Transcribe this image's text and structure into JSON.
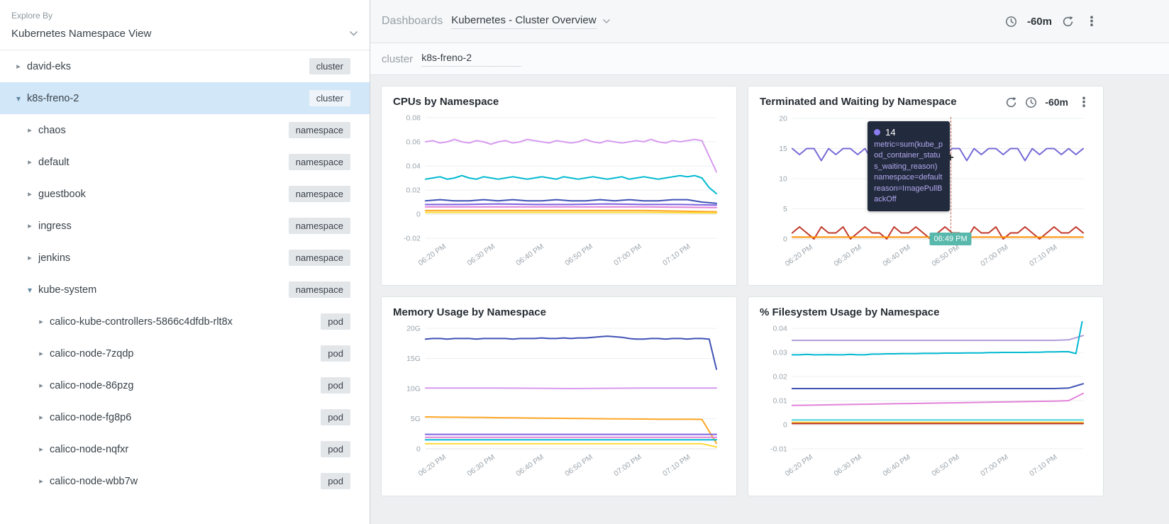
{
  "icons": {
    "kebab_glyph": "⋮",
    "caret_closed_glyph": "▸",
    "caret_open_glyph": "▾",
    "cross_glyph": "+"
  },
  "colors": {
    "selected_row_bg": "#d2e7f8",
    "badge_bg": "#e3e6e9",
    "tooltip_bg": "#222b3d",
    "tooltip_text": "#b3a8f0",
    "time_badge_bg": "#58b8ac",
    "crosshair": "#c2604f"
  },
  "sidebar": {
    "explore_by": "Explore By",
    "view_selector": "Kubernetes Namespace View",
    "tree": [
      {
        "label": "david-eks",
        "badge": "cluster",
        "level": 0,
        "expanded": false,
        "selected": false
      },
      {
        "label": "k8s-freno-2",
        "badge": "cluster",
        "level": 0,
        "expanded": true,
        "selected": true
      },
      {
        "label": "chaos",
        "badge": "namespace",
        "level": 1,
        "expanded": false,
        "selected": false
      },
      {
        "label": "default",
        "badge": "namespace",
        "level": 1,
        "expanded": false,
        "selected": false
      },
      {
        "label": "guestbook",
        "badge": "namespace",
        "level": 1,
        "expanded": false,
        "selected": false
      },
      {
        "label": "ingress",
        "badge": "namespace",
        "level": 1,
        "expanded": false,
        "selected": false
      },
      {
        "label": "jenkins",
        "badge": "namespace",
        "level": 1,
        "expanded": false,
        "selected": false
      },
      {
        "label": "kube-system",
        "badge": "namespace",
        "level": 1,
        "expanded": true,
        "selected": false
      },
      {
        "label": "calico-kube-controllers-5866c4dfdb-rlt8x",
        "badge": "pod",
        "level": 2,
        "expanded": false,
        "selected": false
      },
      {
        "label": "calico-node-7zqdp",
        "badge": "pod",
        "level": 2,
        "expanded": false,
        "selected": false
      },
      {
        "label": "calico-node-86pzg",
        "badge": "pod",
        "level": 2,
        "expanded": false,
        "selected": false
      },
      {
        "label": "calico-node-fg8p6",
        "badge": "pod",
        "level": 2,
        "expanded": false,
        "selected": false
      },
      {
        "label": "calico-node-nqfxr",
        "badge": "pod",
        "level": 2,
        "expanded": false,
        "selected": false
      },
      {
        "label": "calico-node-wbb7w",
        "badge": "pod",
        "level": 2,
        "expanded": false,
        "selected": false
      }
    ]
  },
  "topbar": {
    "dashboards_label": "Dashboards",
    "dashboard_name": "Kubernetes - Cluster Overview",
    "time_range": "-60m"
  },
  "scope": {
    "key": "cluster",
    "value": "k8s-freno-2"
  },
  "panel2": {
    "time_range": "-60m"
  },
  "tooltip": {
    "value": "14",
    "lines": [
      "metric=sum(kube_pod_container_status_waiting_reason)",
      "namespace=default",
      "reason=ImagePullBackOff"
    ],
    "time_badge": "06:49 PM",
    "dot_color": "#8a7ef0"
  },
  "chart_data": [
    {
      "type": "line",
      "title": "CPUs by Namespace",
      "xlabel": "",
      "ylabel": "",
      "ylim": [
        -0.02,
        0.08
      ],
      "grid": "horizontal",
      "legend": "none",
      "yticks": [
        {
          "v": -0.02,
          "label": "-0.02"
        },
        {
          "v": 0,
          "label": "0"
        },
        {
          "v": 0.02,
          "label": "0.02"
        },
        {
          "v": 0.04,
          "label": "0.04"
        },
        {
          "v": 0.06,
          "label": "0.06"
        },
        {
          "v": 0.08,
          "label": "0.08"
        }
      ],
      "xticks": [
        "06:20 PM",
        "06:30 PM",
        "06:40 PM",
        "06:50 PM",
        "07:00 PM",
        "07:10 PM"
      ],
      "series": [
        {
          "color": "#d79af0",
          "values": [
            0.06,
            0.061,
            0.059,
            0.06,
            0.062,
            0.06,
            0.059,
            0.061,
            0.06,
            0.058,
            0.06,
            0.061,
            0.059,
            0.06,
            0.062,
            0.061,
            0.06,
            0.059,
            0.061,
            0.06,
            0.059,
            0.06,
            0.062,
            0.06,
            0.059,
            0.061,
            0.06,
            0.059,
            0.06,
            0.061,
            0.06,
            0.062,
            0.06,
            0.059,
            0.061,
            0.06,
            0.061,
            0.062,
            0.061,
            0.048,
            0.035
          ]
        },
        {
          "color": "#00b9d1",
          "values": [
            0.029,
            0.03,
            0.031,
            0.029,
            0.03,
            0.032,
            0.03,
            0.029,
            0.031,
            0.03,
            0.029,
            0.03,
            0.031,
            0.03,
            0.029,
            0.03,
            0.031,
            0.03,
            0.029,
            0.031,
            0.03,
            0.029,
            0.03,
            0.031,
            0.03,
            0.029,
            0.03,
            0.031,
            0.029,
            0.03,
            0.031,
            0.03,
            0.029,
            0.03,
            0.031,
            0.032,
            0.031,
            0.032,
            0.03,
            0.022,
            0.017
          ]
        },
        {
          "color": "#3f51b5",
          "values": [
            0.011,
            0.012,
            0.011,
            0.011,
            0.012,
            0.011,
            0.012,
            0.011,
            0.011,
            0.012,
            0.011,
            0.011,
            0.012,
            0.011,
            0.012,
            0.011,
            0.011,
            0.012,
            0.012,
            0.01,
            0.009
          ]
        },
        {
          "color": "#7c62e0",
          "values": [
            0.008,
            0.008,
            0.0085,
            0.008,
            0.008,
            0.0085,
            0.008,
            0.008,
            0.0075
          ]
        },
        {
          "color": "#e283d8",
          "values": [
            0.006,
            0.006,
            0.006,
            0.006,
            0.0055
          ]
        },
        {
          "color": "#ffa726",
          "values": [
            0.003,
            0.003,
            0.003,
            0.003,
            0.002
          ]
        },
        {
          "color": "#fdd835",
          "values": [
            0.0015,
            0.0015,
            0.0015,
            0.0015,
            0.001
          ]
        }
      ]
    },
    {
      "type": "line",
      "title": "Terminated and Waiting by Namespace",
      "xlabel": "",
      "ylabel": "",
      "ylim": [
        0,
        20
      ],
      "grid": "horizontal",
      "legend": "none",
      "yticks": [
        {
          "v": 0,
          "label": "0"
        },
        {
          "v": 5,
          "label": "5"
        },
        {
          "v": 10,
          "label": "10"
        },
        {
          "v": 15,
          "label": "15"
        },
        {
          "v": 20,
          "label": "20"
        }
      ],
      "xticks": [
        "06:20 PM",
        "06:30 PM",
        "06:40 PM",
        "06:50 PM",
        "07:00 PM",
        "07:10 PM"
      ],
      "series": [
        {
          "color": "#7569d6",
          "values": [
            15,
            14,
            15,
            15,
            13,
            15,
            14,
            15,
            15,
            14,
            15,
            13,
            15,
            15,
            14,
            15,
            15,
            14,
            13,
            15,
            15,
            14,
            15,
            15,
            13,
            15,
            14,
            15,
            15,
            14,
            15,
            15,
            13,
            15,
            14,
            15,
            15,
            14,
            15,
            14,
            15
          ]
        },
        {
          "color": "#c0392b",
          "values": [
            1,
            2,
            1,
            0,
            2,
            1,
            1,
            2,
            0,
            1,
            2,
            1,
            1,
            0,
            2,
            1,
            1,
            2,
            1,
            0,
            1,
            2,
            1,
            1,
            0,
            2,
            1,
            1,
            2,
            0,
            1,
            1,
            2,
            1,
            0,
            1,
            2,
            1,
            1,
            2,
            1
          ]
        },
        {
          "color": "#ff8f00",
          "values": [
            0.3,
            0.3
          ]
        }
      ]
    },
    {
      "type": "line",
      "title": "Memory Usage by Namespace",
      "xlabel": "",
      "ylabel": "",
      "ylim": [
        0,
        20
      ],
      "unit": "G",
      "grid": "horizontal",
      "legend": "none",
      "yticks": [
        {
          "v": 0,
          "label": "0"
        },
        {
          "v": 5,
          "label": "5G"
        },
        {
          "v": 10,
          "label": "10G"
        },
        {
          "v": 15,
          "label": "15G"
        },
        {
          "v": 20,
          "label": "20G"
        }
      ],
      "xticks": [
        "06:20 PM",
        "06:30 PM",
        "06:40 PM",
        "06:50 PM",
        "07:00 PM",
        "07:10 PM"
      ],
      "series": [
        {
          "color": "#3f51b5",
          "values": [
            18.2,
            18.3,
            18.3,
            18.2,
            18.3,
            18.3,
            18.3,
            18.2,
            18.3,
            18.3,
            18.3,
            18.3,
            18.2,
            18.3,
            18.3,
            18.3,
            18.4,
            18.3,
            18.3,
            18.4,
            18.3,
            18.4,
            18.4,
            18.5,
            18.6,
            18.7,
            18.6,
            18.5,
            18.3,
            18.2,
            18.2,
            18.3,
            18.3,
            18.2,
            18.3,
            18.3,
            18.2,
            18.3,
            18.3,
            18.2,
            13.2
          ]
        },
        {
          "color": "#d79af0",
          "values": [
            10.1,
            10.1,
            10.0,
            10.1,
            10.1
          ]
        },
        {
          "color": "#ffa726",
          "values": [
            5.3,
            5.27,
            5.25,
            5.22,
            5.2,
            5.17,
            5.15,
            5.12,
            5.1,
            5.07,
            5.05,
            5.02,
            5.0,
            4.98,
            4.96,
            4.94,
            4.92,
            4.9,
            4.9,
            4.88,
            0.9
          ]
        },
        {
          "color": "#7c62e0",
          "values": [
            2.4,
            2.4
          ]
        },
        {
          "color": "#e283d8",
          "values": [
            1.9,
            1.9
          ]
        },
        {
          "color": "#00b9d1",
          "values": [
            1.5,
            1.5
          ]
        },
        {
          "color": "#fdd835",
          "values": [
            0.85,
            0.85,
            0.85,
            0.85,
            0.85,
            0.85,
            0.85,
            0.85,
            0.85,
            0.85,
            0.85,
            0.85,
            0.85,
            0.85,
            0.85,
            0.85,
            0.85,
            0.85,
            0.85,
            0.85,
            0.3
          ]
        }
      ]
    },
    {
      "type": "line",
      "title": "% Filesystem Usage by Namespace",
      "xlabel": "",
      "ylabel": "",
      "ylim": [
        -0.01,
        0.04
      ],
      "grid": "horizontal",
      "legend": "none",
      "yticks": [
        {
          "v": -0.01,
          "label": "-0.01"
        },
        {
          "v": 0,
          "label": "0"
        },
        {
          "v": 0.01,
          "label": "0.01"
        },
        {
          "v": 0.02,
          "label": "0.02"
        },
        {
          "v": 0.03,
          "label": "0.03"
        },
        {
          "v": 0.04,
          "label": "0.04"
        }
      ],
      "xticks": [
        "06:20 PM",
        "06:30 PM",
        "06:40 PM",
        "06:50 PM",
        "07:00 PM",
        "07:10 PM"
      ],
      "series": [
        {
          "color": "#b39ddb",
          "values": [
            0.035,
            0.035,
            0.035,
            0.035,
            0.035,
            0.035,
            0.035,
            0.035,
            0.035,
            0.035,
            0.035,
            0.035,
            0.035,
            0.035,
            0.035,
            0.035,
            0.035,
            0.035,
            0.035,
            0.0352,
            0.037
          ]
        },
        {
          "color": "#00b9d1",
          "values": [
            0.029,
            0.029,
            0.0292,
            0.029,
            0.029,
            0.0291,
            0.029,
            0.029,
            0.0292,
            0.029,
            0.029,
            0.0293,
            0.0293,
            0.0294,
            0.0294,
            0.0295,
            0.0295,
            0.0295,
            0.0296,
            0.0296,
            0.0296,
            0.0297,
            0.0297,
            0.0297,
            0.0298,
            0.0298,
            0.0298,
            0.0299,
            0.0299,
            0.03,
            0.03,
            0.03,
            0.03,
            0.0301,
            0.0301,
            0.0302,
            0.0302,
            0.0303,
            0.0303,
            0.0295,
            0.045
          ]
        },
        {
          "color": "#3f51b5",
          "values": [
            0.015,
            0.015,
            0.015,
            0.015,
            0.015,
            0.015,
            0.015,
            0.015,
            0.015,
            0.015,
            0.015,
            0.015,
            0.015,
            0.015,
            0.015,
            0.015,
            0.015,
            0.015,
            0.015,
            0.0152,
            0.017
          ]
        },
        {
          "color": "#e283d8",
          "values": [
            0.008,
            0.0081,
            0.0082,
            0.0083,
            0.0084,
            0.0085,
            0.0086,
            0.0087,
            0.0088,
            0.0089,
            0.009,
            0.0091,
            0.0092,
            0.0093,
            0.0094,
            0.0095,
            0.0096,
            0.0097,
            0.0098,
            0.01,
            0.013
          ]
        },
        {
          "color": "#4dd0e1",
          "values": [
            0.002,
            0.002
          ]
        },
        {
          "color": "#fdd835",
          "values": [
            0.001,
            0.001
          ]
        },
        {
          "color": "#c0392b",
          "values": [
            0.0005,
            0.0005
          ]
        }
      ]
    }
  ]
}
